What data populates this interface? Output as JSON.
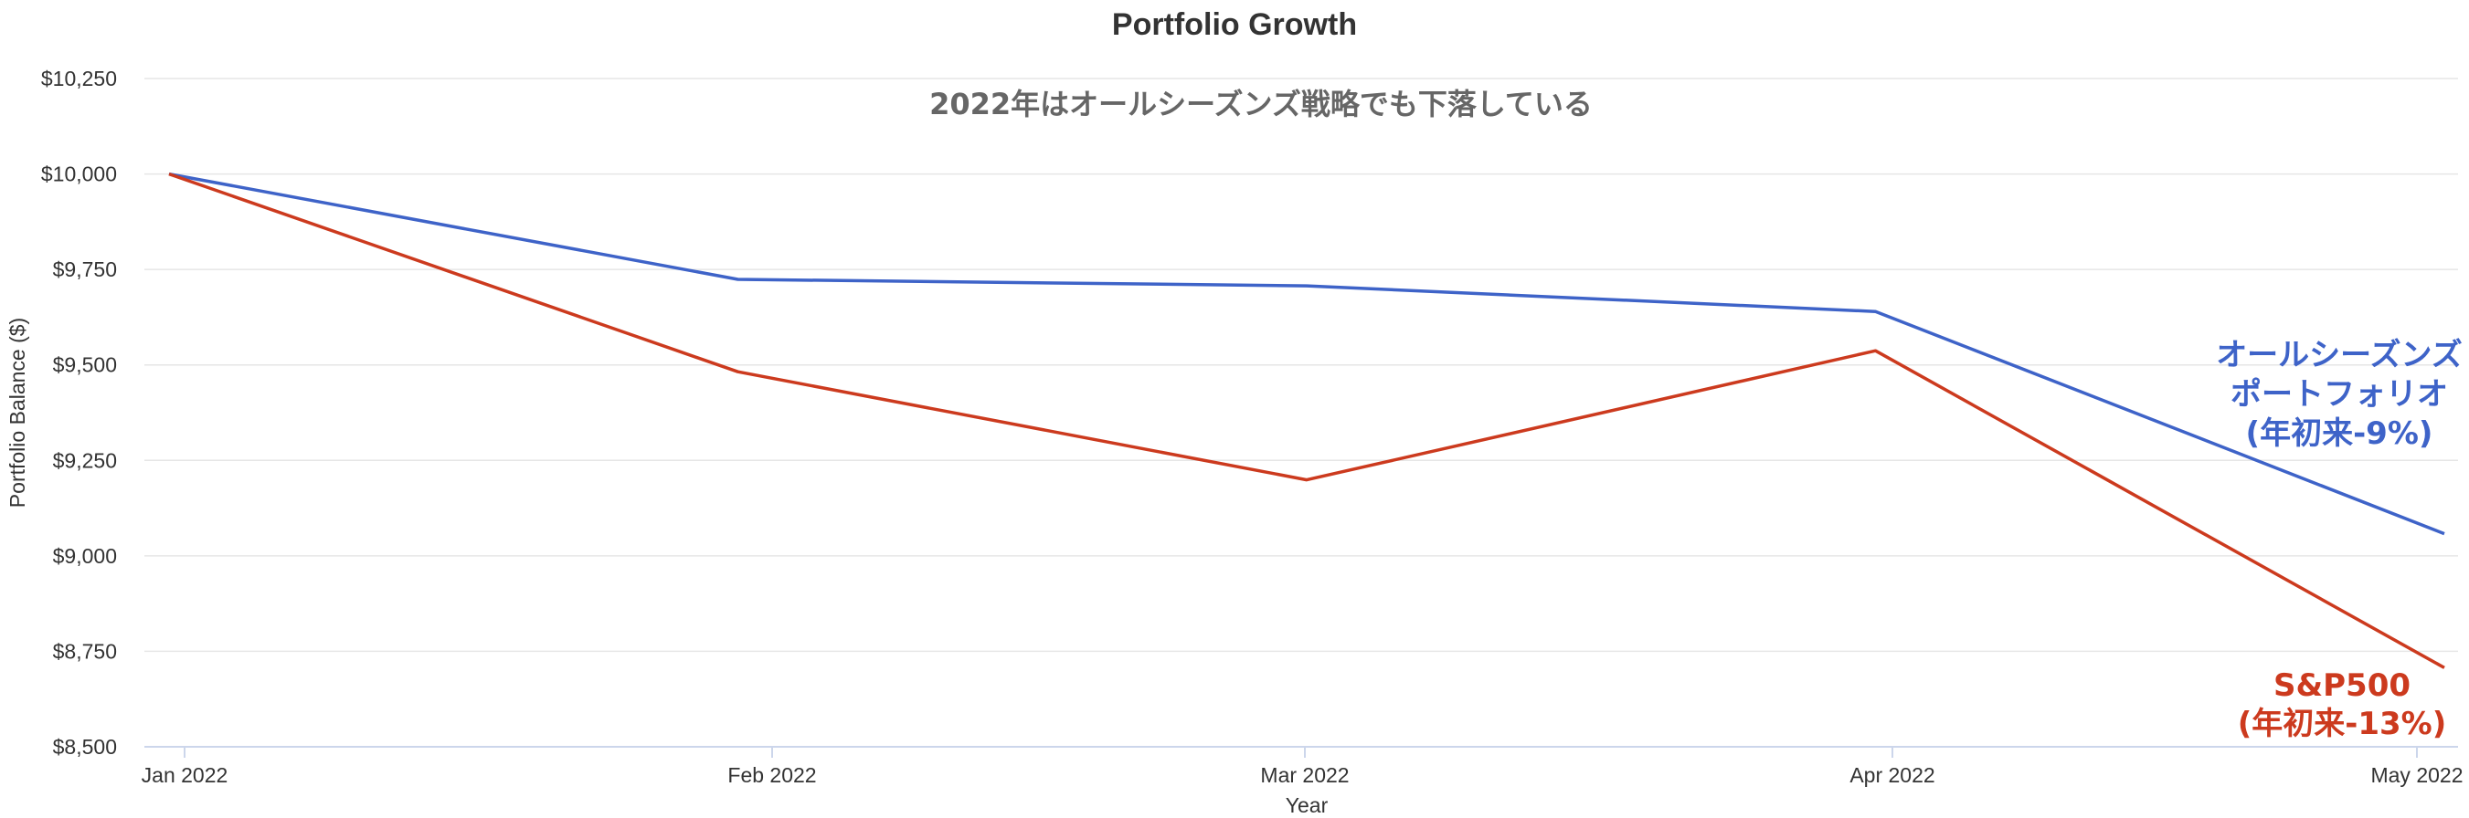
{
  "chart_data": {
    "type": "line",
    "title": "Portfolio Growth",
    "subtitle": "2022年はオールシーズンズ戦略でも下落している",
    "xlabel": "Year",
    "ylabel": "Portfolio Balance ($)",
    "x": [
      "Jan 2022",
      "Feb 2022",
      "Mar 2022",
      "Apr 2022",
      "May 2022"
    ],
    "ylim": [
      8500,
      10250
    ],
    "yticks": [
      "$8,500",
      "$8,750",
      "$9,000",
      "$9,250",
      "$9,500",
      "$9,750",
      "$10,000",
      "$10,250"
    ],
    "ytick_values": [
      8500,
      8750,
      9000,
      9250,
      9500,
      9750,
      10000,
      10250
    ],
    "grid": true,
    "series": [
      {
        "key": "allseasons",
        "values": [
          10000,
          9724,
          9707,
          9640,
          9058
        ],
        "color": "#3e63c8",
        "annotation": [
          "オールシーズンズ",
          "ポートフォリオ",
          "(年初来-9%)"
        ]
      },
      {
        "key": "sp500",
        "values": [
          10000,
          9482,
          9199,
          9537,
          8707
        ],
        "color": "#cc3a1e",
        "annotation": [
          "S&P500",
          "(年初来-13%)"
        ]
      }
    ]
  }
}
